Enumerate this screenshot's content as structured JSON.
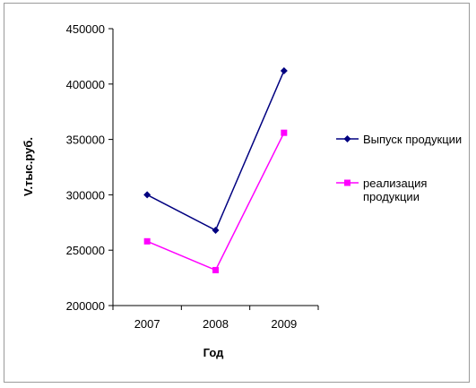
{
  "chart_data": {
    "type": "line",
    "categories": [
      "2007",
      "2008",
      "2009"
    ],
    "series": [
      {
        "name": "Выпуск продукции",
        "values": [
          300000,
          268000,
          412000
        ],
        "color": "#000080",
        "marker": "diamond"
      },
      {
        "name": "реализация продукции",
        "values": [
          258000,
          232000,
          356000
        ],
        "color": "#ff00ff",
        "marker": "square"
      }
    ],
    "y_ticks": [
      "450000",
      "400000",
      "350000",
      "300000",
      "250000",
      "200000"
    ],
    "xlabel": "Год",
    "ylabel": "V.тыс.руб.",
    "ylim": [
      200000,
      450000
    ],
    "grid": false,
    "legend_position": "right"
  }
}
